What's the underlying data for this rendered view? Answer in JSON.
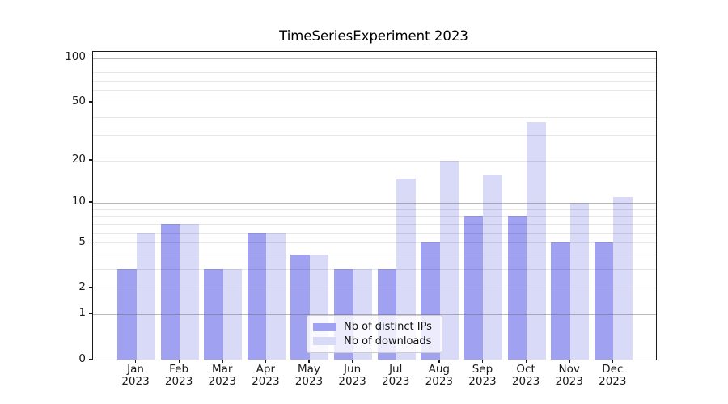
{
  "chart_data": {
    "type": "bar",
    "title": "TimeSeriesExperiment 2023",
    "categories": [
      "Jan",
      "Feb",
      "Mar",
      "Apr",
      "May",
      "Jun",
      "Jul",
      "Aug",
      "Sep",
      "Oct",
      "Nov",
      "Dec"
    ],
    "category_year": "2023",
    "series": [
      {
        "name": "Nb of distinct IPs",
        "color": "#a1a1f1",
        "values": [
          3,
          7,
          3,
          6,
          4,
          3,
          3,
          5,
          8,
          8,
          5,
          5
        ]
      },
      {
        "name": "Nb of downloads",
        "color": "#d9d9f8",
        "values": [
          6,
          7,
          3,
          6,
          4,
          3,
          15,
          20,
          16,
          37,
          10,
          11
        ]
      }
    ],
    "yscale": "log1p",
    "ylim": [
      0,
      110
    ],
    "y_ticks": [
      0,
      1,
      2,
      5,
      10,
      20,
      50,
      100
    ],
    "grid_major_at": [
      1,
      10,
      100
    ],
    "grid_minor_at": [
      2,
      3,
      4,
      5,
      6,
      7,
      8,
      9,
      20,
      30,
      40,
      50,
      60,
      70,
      80,
      90
    ],
    "legend_position": "lower center",
    "xlabel": "",
    "ylabel": ""
  }
}
